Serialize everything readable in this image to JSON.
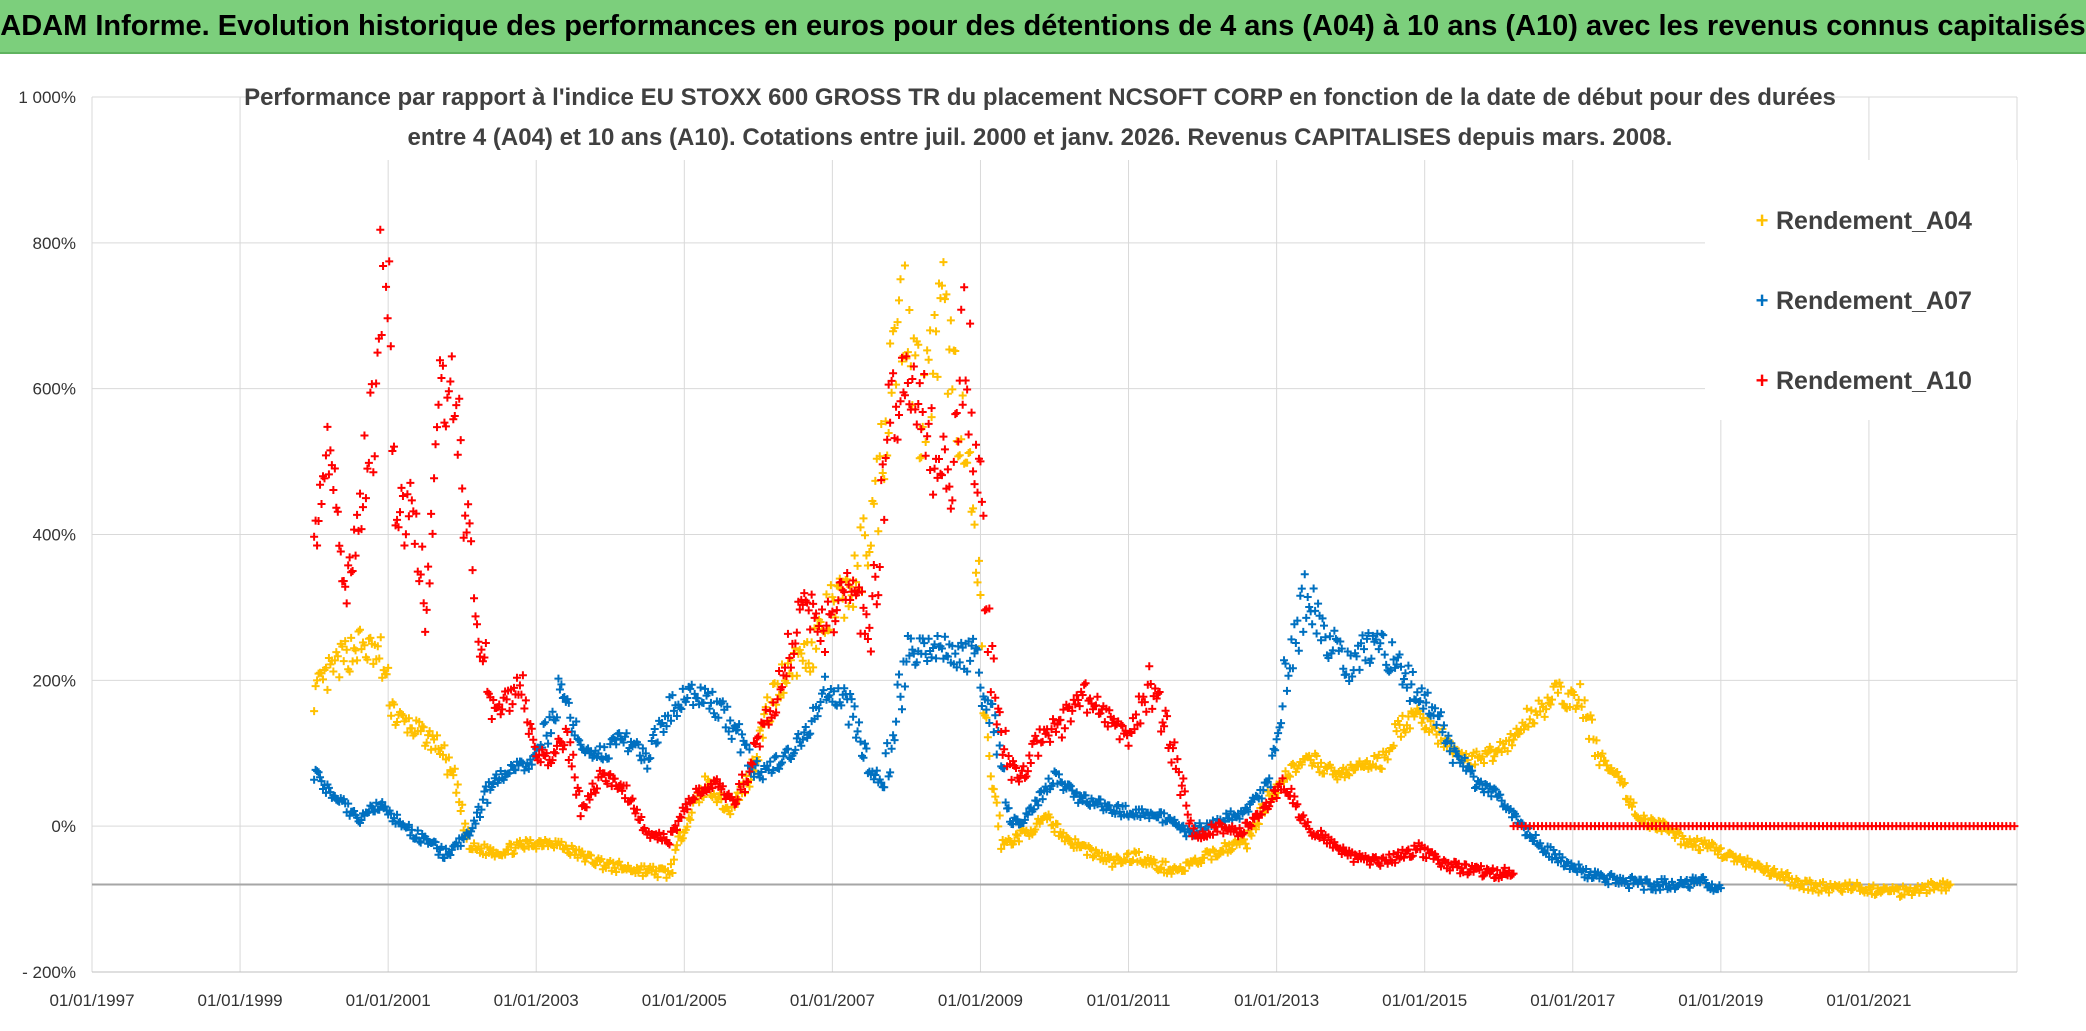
{
  "header": {
    "title": "ADAM Informe. Evolution historique des performances en euros pour des détentions de 4 ans (A04) à 10 ans (A10) avec les revenus connus capitalisés"
  },
  "colors": {
    "banner": "#7ccf7c",
    "A04": "#FFC000",
    "A07": "#0070C0",
    "A10": "#FF0000",
    "grid": "#d9d9d9",
    "baseline": "#a6a6a6"
  },
  "chart_data": {
    "type": "scatter",
    "title_lines": [
      "Performance par rapport à l'indice EU STOXX 600 GROSS TR  du placement NCSOFT CORP en fonction de la date de début pour des durées",
      "entre 4 (A04) et 10 ans (A10). Cotations entre juil. 2000 et janv. 2026. Revenus CAPITALISES depuis mars. 2008."
    ],
    "xlabel": "",
    "ylabel": "",
    "x_range": [
      1997.0,
      2023.0
    ],
    "x_ticks": [
      1997,
      1999,
      2001,
      2003,
      2005,
      2007,
      2009,
      2011,
      2013,
      2015,
      2017,
      2019,
      2021
    ],
    "x_tick_labels": [
      "01/01/1997",
      "01/01/1999",
      "01/01/2001",
      "01/01/2003",
      "01/01/2005",
      "01/01/2007",
      "01/01/2009",
      "01/01/2011",
      "01/01/2013",
      "01/01/2015",
      "01/01/2017",
      "01/01/2019",
      "01/01/2021"
    ],
    "ylim": [
      -200,
      1000
    ],
    "y_ticks": [
      -200,
      0,
      200,
      400,
      600,
      800,
      1000
    ],
    "y_tick_labels": [
      "- 200%",
      "0%",
      "200%",
      "400%",
      "600%",
      "800%",
      "1 000%"
    ],
    "reference_line_y": -80,
    "legend": [
      "Rendement_A04",
      "Rendement_A07",
      "Rendement_A10"
    ],
    "legend_position": "top-right",
    "marker": "+",
    "series": [
      {
        "name": "Rendement_A04",
        "key": "A04",
        "points": [
          [
            2000.0,
            180
          ],
          [
            2000.3,
            220
          ],
          [
            2000.6,
            250
          ],
          [
            2000.9,
            230
          ],
          [
            2001.1,
            150
          ],
          [
            2001.4,
            130
          ],
          [
            2001.7,
            110
          ],
          [
            2001.9,
            60
          ],
          [
            2002.1,
            -30
          ],
          [
            2002.5,
            -35
          ],
          [
            2002.9,
            -25
          ],
          [
            2003.2,
            -20
          ],
          [
            2003.6,
            -40
          ],
          [
            2004.0,
            -55
          ],
          [
            2004.4,
            -60
          ],
          [
            2004.8,
            -65
          ],
          [
            2005.0,
            0
          ],
          [
            2005.3,
            60
          ],
          [
            2005.6,
            20
          ],
          [
            2005.9,
            70
          ],
          [
            2006.1,
            150
          ],
          [
            2006.4,
            220
          ],
          [
            2006.7,
            240
          ],
          [
            2007.0,
            300
          ],
          [
            2007.3,
            330
          ],
          [
            2007.6,
            450
          ],
          [
            2007.8,
            640
          ],
          [
            2008.0,
            730
          ],
          [
            2008.2,
            560
          ],
          [
            2008.5,
            700
          ],
          [
            2008.7,
            580
          ],
          [
            2008.9,
            420
          ],
          [
            2009.1,
            100
          ],
          [
            2009.3,
            -25
          ],
          [
            2009.6,
            -10
          ],
          [
            2009.9,
            10
          ],
          [
            2010.2,
            -20
          ],
          [
            2010.5,
            -35
          ],
          [
            2010.8,
            -50
          ],
          [
            2011.1,
            -40
          ],
          [
            2011.4,
            -55
          ],
          [
            2011.7,
            -60
          ],
          [
            2012.0,
            -45
          ],
          [
            2012.3,
            -30
          ],
          [
            2012.6,
            -20
          ],
          [
            2012.9,
            40
          ],
          [
            2013.2,
            80
          ],
          [
            2013.5,
            90
          ],
          [
            2013.8,
            70
          ],
          [
            2014.1,
            80
          ],
          [
            2014.4,
            90
          ],
          [
            2014.7,
            140
          ],
          [
            2015.0,
            150
          ],
          [
            2015.3,
            110
          ],
          [
            2015.6,
            90
          ],
          [
            2015.9,
            100
          ],
          [
            2016.2,
            120
          ],
          [
            2016.5,
            160
          ],
          [
            2016.8,
            180
          ],
          [
            2017.1,
            170
          ],
          [
            2017.4,
            90
          ],
          [
            2017.7,
            50
          ],
          [
            2017.9,
            10
          ],
          [
            2018.2,
            0
          ],
          [
            2018.5,
            -20
          ],
          [
            2018.9,
            -30
          ],
          [
            2019.3,
            -50
          ],
          [
            2019.7,
            -65
          ],
          [
            2020.1,
            -80
          ],
          [
            2020.5,
            -85
          ],
          [
            2020.9,
            -85
          ],
          [
            2021.3,
            -90
          ],
          [
            2021.7,
            -85
          ],
          [
            2022.1,
            -80
          ]
        ]
      },
      {
        "name": "Rendement_A07",
        "key": "A07",
        "points": [
          [
            2000.0,
            70
          ],
          [
            2000.3,
            40
          ],
          [
            2000.6,
            10
          ],
          [
            2000.9,
            30
          ],
          [
            2001.2,
            0
          ],
          [
            2001.5,
            -20
          ],
          [
            2001.8,
            -40
          ],
          [
            2002.1,
            -10
          ],
          [
            2002.4,
            60
          ],
          [
            2002.7,
            80
          ],
          [
            2003.0,
            90
          ],
          [
            2003.3,
            180
          ],
          [
            2003.6,
            110
          ],
          [
            2003.9,
            100
          ],
          [
            2004.2,
            120
          ],
          [
            2004.5,
            90
          ],
          [
            2004.8,
            160
          ],
          [
            2005.1,
            180
          ],
          [
            2005.4,
            170
          ],
          [
            2005.7,
            130
          ],
          [
            2006.0,
            70
          ],
          [
            2006.3,
            90
          ],
          [
            2006.6,
            120
          ],
          [
            2006.9,
            190
          ],
          [
            2007.2,
            170
          ],
          [
            2007.5,
            80
          ],
          [
            2007.7,
            60
          ],
          [
            2008.0,
            240
          ],
          [
            2008.3,
            250
          ],
          [
            2008.6,
            240
          ],
          [
            2008.9,
            230
          ],
          [
            2009.2,
            140
          ],
          [
            2009.4,
            0
          ],
          [
            2009.7,
            20
          ],
          [
            2010.0,
            70
          ],
          [
            2010.3,
            40
          ],
          [
            2010.6,
            30
          ],
          [
            2010.9,
            20
          ],
          [
            2011.2,
            20
          ],
          [
            2011.5,
            10
          ],
          [
            2011.8,
            -10
          ],
          [
            2012.0,
            0
          ],
          [
            2012.3,
            10
          ],
          [
            2012.6,
            20
          ],
          [
            2012.9,
            60
          ],
          [
            2013.1,
            200
          ],
          [
            2013.4,
            310
          ],
          [
            2013.7,
            260
          ],
          [
            2014.0,
            220
          ],
          [
            2014.3,
            250
          ],
          [
            2014.6,
            230
          ],
          [
            2014.9,
            180
          ],
          [
            2015.1,
            160
          ],
          [
            2015.4,
            100
          ],
          [
            2015.7,
            60
          ],
          [
            2016.0,
            40
          ],
          [
            2016.3,
            0
          ],
          [
            2016.6,
            -30
          ],
          [
            2016.9,
            -50
          ],
          [
            2017.2,
            -65
          ],
          [
            2017.6,
            -75
          ],
          [
            2018.0,
            -80
          ],
          [
            2018.4,
            -80
          ],
          [
            2018.8,
            -75
          ],
          [
            2019.0,
            -85
          ]
        ]
      },
      {
        "name": "Rendement_A10",
        "key": "A10",
        "points": [
          [
            2000.0,
            380
          ],
          [
            2000.2,
            500
          ],
          [
            2000.4,
            330
          ],
          [
            2000.6,
            420
          ],
          [
            2000.8,
            560
          ],
          [
            2000.95,
            850
          ],
          [
            2001.1,
            400
          ],
          [
            2001.3,
            450
          ],
          [
            2001.5,
            320
          ],
          [
            2001.7,
            590
          ],
          [
            2001.9,
            620
          ],
          [
            2002.0,
            470
          ],
          [
            2002.2,
            300
          ],
          [
            2002.4,
            160
          ],
          [
            2002.6,
            170
          ],
          [
            2002.8,
            190
          ],
          [
            2003.0,
            100
          ],
          [
            2003.2,
            90
          ],
          [
            2003.4,
            130
          ],
          [
            2003.6,
            20
          ],
          [
            2003.9,
            70
          ],
          [
            2004.2,
            50
          ],
          [
            2004.5,
            -10
          ],
          [
            2004.8,
            -20
          ],
          [
            2005.1,
            40
          ],
          [
            2005.4,
            60
          ],
          [
            2005.7,
            30
          ],
          [
            2006.0,
            120
          ],
          [
            2006.3,
            200
          ],
          [
            2006.6,
            300
          ],
          [
            2006.9,
            270
          ],
          [
            2007.2,
            320
          ],
          [
            2007.5,
            280
          ],
          [
            2007.8,
            560
          ],
          [
            2008.0,
            620
          ],
          [
            2008.2,
            600
          ],
          [
            2008.4,
            480
          ],
          [
            2008.6,
            500
          ],
          [
            2008.8,
            680
          ],
          [
            2009.0,
            430
          ],
          [
            2009.2,
            150
          ],
          [
            2009.5,
            60
          ],
          [
            2009.8,
            120
          ],
          [
            2010.1,
            140
          ],
          [
            2010.4,
            180
          ],
          [
            2010.7,
            150
          ],
          [
            2011.0,
            120
          ],
          [
            2011.3,
            200
          ],
          [
            2011.6,
            100
          ],
          [
            2011.9,
            -20
          ],
          [
            2012.2,
            0
          ],
          [
            2012.5,
            -10
          ],
          [
            2012.8,
            20
          ],
          [
            2013.1,
            60
          ],
          [
            2013.4,
            0
          ],
          [
            2013.7,
            -20
          ],
          [
            2014.0,
            -40
          ],
          [
            2014.3,
            -50
          ],
          [
            2014.6,
            -45
          ],
          [
            2014.9,
            -30
          ],
          [
            2015.2,
            -50
          ],
          [
            2015.6,
            -60
          ],
          [
            2015.9,
            -65
          ],
          [
            2016.2,
            -65
          ]
        ]
      },
      {
        "name": "Rendement_A10",
        "key": "A10",
        "segment": "flat",
        "points": [
          [
            2016.2,
            0
          ],
          [
            2023.0,
            0
          ]
        ]
      }
    ]
  }
}
